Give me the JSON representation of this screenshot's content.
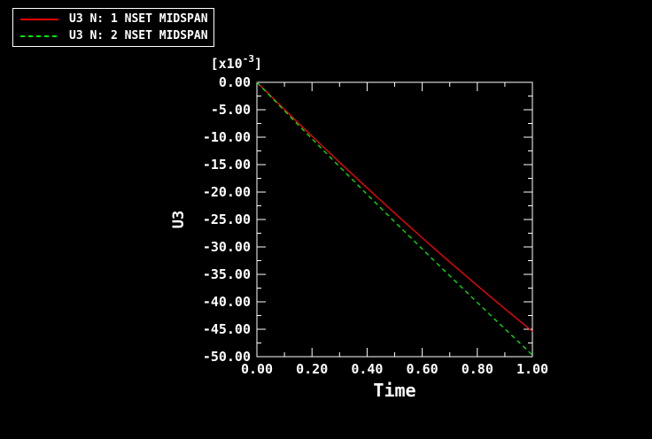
{
  "colors": {
    "background": "#000000",
    "axis": "#ffffff",
    "text": "#ffffff",
    "series1": "#ff0000",
    "series2": "#00ee00"
  },
  "legend": {
    "items": [
      {
        "label": "U3 N: 1 NSET MIDSPAN",
        "color": "#ff0000",
        "style": "solid"
      },
      {
        "label": "U3 N: 2 NSET MIDSPAN",
        "color": "#00ee00",
        "style": "dashed"
      }
    ]
  },
  "chart_data": {
    "type": "line",
    "title": "",
    "xlabel": "Time",
    "ylabel": "U3",
    "y_scale_label": {
      "prefix": "[x10",
      "exponent": "-3",
      "suffix": "]"
    },
    "xlim": [
      0,
      1
    ],
    "ylim": [
      -50,
      0
    ],
    "grid": false,
    "legend_position": "top-left",
    "x_ticks": [
      "0.00",
      "0.20",
      "0.40",
      "0.60",
      "0.80",
      "1.00"
    ],
    "x_tick_values": [
      0,
      0.2,
      0.4,
      0.6,
      0.8,
      1.0
    ],
    "x_minor_tick_values": [
      0.1,
      0.3,
      0.5,
      0.7,
      0.9
    ],
    "y_ticks": [
      "0.00",
      "-5.00",
      "-10.00",
      "-15.00",
      "-20.00",
      "-25.00",
      "-30.00",
      "-35.00",
      "-40.00",
      "-45.00",
      "-50.00"
    ],
    "y_tick_values": [
      0,
      -5,
      -10,
      -15,
      -20,
      -25,
      -30,
      -35,
      -40,
      -45,
      -50
    ],
    "y_minor_tick_values": [
      -2.5,
      -7.5,
      -12.5,
      -17.5,
      -22.5,
      -27.5,
      -32.5,
      -37.5,
      -42.5,
      -47.5
    ],
    "x": [
      0,
      0.05,
      0.1,
      0.15,
      0.2,
      0.25,
      0.3,
      0.35,
      0.4,
      0.45,
      0.5,
      0.55,
      0.6,
      0.65,
      0.7,
      0.75,
      0.8,
      0.85,
      0.9,
      0.95,
      1.0
    ],
    "series": [
      {
        "name": "U3 N: 1 NSET MIDSPAN",
        "color": "#ff0000",
        "style": "solid",
        "values": [
          0,
          -2.49,
          -4.95,
          -7.4,
          -9.82,
          -12.21,
          -14.59,
          -16.94,
          -19.26,
          -21.57,
          -23.85,
          -26.11,
          -28.34,
          -30.56,
          -32.75,
          -34.91,
          -37.06,
          -39.18,
          -41.27,
          -43.35,
          -45.4
        ]
      },
      {
        "name": "U3 N: 2 NSET MIDSPAN",
        "color": "#00ee00",
        "style": "dashed",
        "values": [
          0,
          -2.59,
          -5.18,
          -7.75,
          -10.31,
          -12.86,
          -15.39,
          -17.92,
          -20.43,
          -22.93,
          -25.43,
          -27.9,
          -30.37,
          -32.83,
          -35.27,
          -37.71,
          -40.13,
          -42.54,
          -44.94,
          -47.32,
          -49.7
        ]
      }
    ]
  }
}
